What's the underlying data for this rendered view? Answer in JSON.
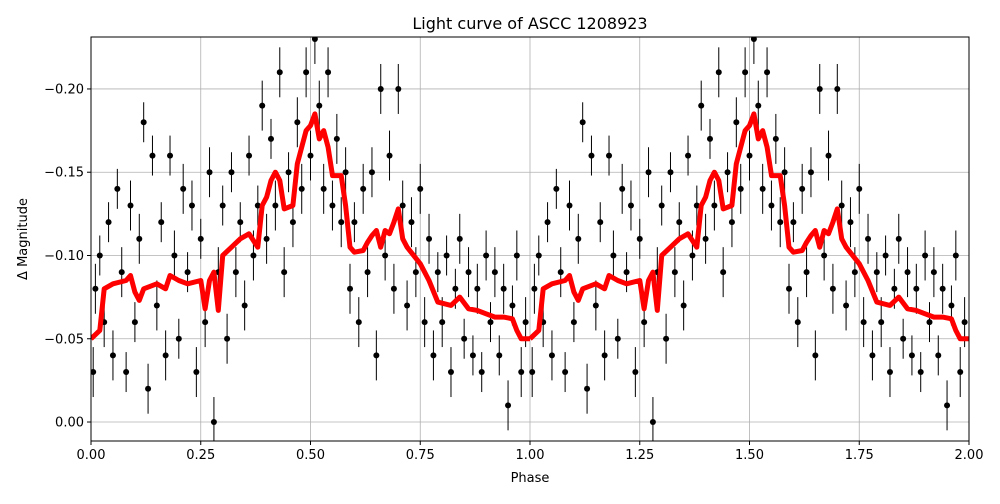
{
  "chart_data": {
    "type": "scatter",
    "title": "Light curve of ASCC 1208923",
    "xlabel": "Phase",
    "ylabel": "Δ Magnitude",
    "xlim": [
      0,
      2
    ],
    "ylim": [
      0.0114,
      -0.2312
    ],
    "y_inverted": true,
    "grid": true,
    "x_ticks": [
      "0.00",
      "0.25",
      "0.50",
      "0.75",
      "1.00",
      "1.25",
      "1.50",
      "1.75",
      "2.00"
    ],
    "y_ticks": [
      "−0.20",
      "−0.15",
      "−0.10",
      "−0.05",
      "0.00"
    ],
    "x_tick_values": [
      0,
      0.25,
      0.5,
      0.75,
      1,
      1.25,
      1.5,
      1.75,
      2
    ],
    "y_tick_values": [
      -0.2,
      -0.15,
      -0.1,
      -0.05,
      0
    ],
    "phase_repeated_twice": true,
    "series": [
      {
        "kind": "errorbar-points",
        "color": "#000000",
        "points": [
          [
            0.005,
            -0.03,
            0.015
          ],
          [
            0.01,
            -0.08,
            0.015
          ],
          [
            0.02,
            -0.1,
            0.012
          ],
          [
            0.03,
            -0.06,
            0.015
          ],
          [
            0.04,
            -0.12,
            0.012
          ],
          [
            0.05,
            -0.04,
            0.015
          ],
          [
            0.06,
            -0.14,
            0.012
          ],
          [
            0.07,
            -0.09,
            0.015
          ],
          [
            0.08,
            -0.03,
            0.012
          ],
          [
            0.09,
            -0.13,
            0.015
          ],
          [
            0.1,
            -0.06,
            0.012
          ],
          [
            0.11,
            -0.11,
            0.015
          ],
          [
            0.12,
            -0.18,
            0.012
          ],
          [
            0.13,
            -0.02,
            0.015
          ],
          [
            0.14,
            -0.16,
            0.012
          ],
          [
            0.15,
            -0.07,
            0.015
          ],
          [
            0.16,
            -0.12,
            0.012
          ],
          [
            0.17,
            -0.04,
            0.015
          ],
          [
            0.18,
            -0.16,
            0.012
          ],
          [
            0.19,
            -0.1,
            0.015
          ],
          [
            0.2,
            -0.05,
            0.012
          ],
          [
            0.21,
            -0.14,
            0.015
          ],
          [
            0.22,
            -0.09,
            0.012
          ],
          [
            0.23,
            -0.13,
            0.015
          ],
          [
            0.24,
            -0.03,
            0.015
          ],
          [
            0.25,
            -0.11,
            0.012
          ],
          [
            0.26,
            -0.06,
            0.015
          ],
          [
            0.27,
            -0.15,
            0.015
          ],
          [
            0.28,
            -0.0,
            0.015
          ],
          [
            0.29,
            -0.09,
            0.015
          ],
          [
            0.3,
            -0.13,
            0.012
          ],
          [
            0.31,
            -0.05,
            0.015
          ],
          [
            0.32,
            -0.15,
            0.012
          ],
          [
            0.33,
            -0.09,
            0.015
          ],
          [
            0.34,
            -0.12,
            0.012
          ],
          [
            0.35,
            -0.07,
            0.015
          ],
          [
            0.36,
            -0.16,
            0.012
          ],
          [
            0.37,
            -0.1,
            0.015
          ],
          [
            0.38,
            -0.13,
            0.012
          ],
          [
            0.39,
            -0.19,
            0.015
          ],
          [
            0.4,
            -0.11,
            0.015
          ],
          [
            0.41,
            -0.17,
            0.012
          ],
          [
            0.42,
            -0.13,
            0.015
          ],
          [
            0.43,
            -0.21,
            0.015
          ],
          [
            0.44,
            -0.09,
            0.015
          ],
          [
            0.45,
            -0.15,
            0.012
          ],
          [
            0.46,
            -0.12,
            0.015
          ],
          [
            0.47,
            -0.18,
            0.015
          ],
          [
            0.48,
            -0.14,
            0.015
          ],
          [
            0.49,
            -0.21,
            0.015
          ],
          [
            0.5,
            -0.16,
            0.015
          ],
          [
            0.51,
            -0.23,
            0.015
          ],
          [
            0.52,
            -0.19,
            0.015
          ],
          [
            0.53,
            -0.14,
            0.015
          ],
          [
            0.54,
            -0.21,
            0.015
          ],
          [
            0.55,
            -0.13,
            0.015
          ],
          [
            0.56,
            -0.17,
            0.015
          ],
          [
            0.57,
            -0.12,
            0.015
          ],
          [
            0.58,
            -0.15,
            0.015
          ],
          [
            0.59,
            -0.08,
            0.015
          ],
          [
            0.6,
            -0.12,
            0.012
          ],
          [
            0.61,
            -0.06,
            0.015
          ],
          [
            0.62,
            -0.14,
            0.015
          ],
          [
            0.63,
            -0.09,
            0.015
          ],
          [
            0.64,
            -0.15,
            0.015
          ],
          [
            0.65,
            -0.04,
            0.015
          ],
          [
            0.66,
            -0.2,
            0.015
          ],
          [
            0.67,
            -0.1,
            0.015
          ],
          [
            0.68,
            -0.16,
            0.015
          ],
          [
            0.69,
            -0.08,
            0.015
          ],
          [
            0.7,
            -0.2,
            0.015
          ],
          [
            0.71,
            -0.13,
            0.015
          ],
          [
            0.72,
            -0.07,
            0.015
          ],
          [
            0.73,
            -0.12,
            0.015
          ],
          [
            0.74,
            -0.09,
            0.015
          ],
          [
            0.75,
            -0.14,
            0.015
          ],
          [
            0.76,
            -0.06,
            0.015
          ],
          [
            0.77,
            -0.11,
            0.015
          ],
          [
            0.78,
            -0.04,
            0.015
          ],
          [
            0.79,
            -0.09,
            0.012
          ],
          [
            0.8,
            -0.06,
            0.015
          ],
          [
            0.81,
            -0.1,
            0.012
          ],
          [
            0.82,
            -0.03,
            0.015
          ],
          [
            0.83,
            -0.08,
            0.012
          ],
          [
            0.84,
            -0.11,
            0.015
          ],
          [
            0.85,
            -0.05,
            0.012
          ],
          [
            0.86,
            -0.09,
            0.015
          ],
          [
            0.87,
            -0.04,
            0.012
          ],
          [
            0.88,
            -0.08,
            0.015
          ],
          [
            0.89,
            -0.03,
            0.012
          ],
          [
            0.9,
            -0.1,
            0.015
          ],
          [
            0.91,
            -0.06,
            0.012
          ],
          [
            0.92,
            -0.09,
            0.015
          ],
          [
            0.93,
            -0.04,
            0.012
          ],
          [
            0.94,
            -0.08,
            0.015
          ],
          [
            0.95,
            -0.01,
            0.015
          ],
          [
            0.96,
            -0.07,
            0.012
          ],
          [
            0.97,
            -0.1,
            0.015
          ],
          [
            0.98,
            -0.03,
            0.015
          ],
          [
            0.99,
            -0.06,
            0.015
          ]
        ]
      },
      {
        "kind": "line",
        "color": "#ff0000",
        "x": [
          0.0,
          0.02,
          0.03,
          0.05,
          0.08,
          0.09,
          0.1,
          0.11,
          0.12,
          0.15,
          0.17,
          0.18,
          0.2,
          0.22,
          0.25,
          0.26,
          0.27,
          0.28,
          0.29,
          0.3,
          0.32,
          0.34,
          0.36,
          0.38,
          0.39,
          0.4,
          0.41,
          0.42,
          0.43,
          0.44,
          0.46,
          0.47,
          0.48,
          0.49,
          0.5,
          0.51,
          0.52,
          0.53,
          0.54,
          0.55,
          0.57,
          0.58,
          0.59,
          0.6,
          0.62,
          0.63,
          0.64,
          0.65,
          0.66,
          0.67,
          0.68,
          0.69,
          0.7,
          0.71,
          0.72,
          0.75,
          0.77,
          0.79,
          0.82,
          0.84,
          0.86,
          0.88,
          0.9,
          0.92,
          0.94,
          0.96,
          0.97,
          0.98,
          1.0
        ],
        "y": [
          -0.05,
          -0.055,
          -0.08,
          -0.083,
          -0.085,
          -0.088,
          -0.078,
          -0.073,
          -0.08,
          -0.083,
          -0.08,
          -0.088,
          -0.085,
          -0.083,
          -0.085,
          -0.068,
          -0.085,
          -0.09,
          -0.067,
          -0.1,
          -0.105,
          -0.11,
          -0.113,
          -0.105,
          -0.13,
          -0.135,
          -0.145,
          -0.15,
          -0.145,
          -0.128,
          -0.13,
          -0.155,
          -0.165,
          -0.175,
          -0.178,
          -0.185,
          -0.17,
          -0.175,
          -0.165,
          -0.148,
          -0.148,
          -0.13,
          -0.105,
          -0.102,
          -0.103,
          -0.108,
          -0.112,
          -0.115,
          -0.105,
          -0.115,
          -0.113,
          -0.12,
          -0.128,
          -0.11,
          -0.105,
          -0.095,
          -0.085,
          -0.072,
          -0.07,
          -0.075,
          -0.068,
          -0.067,
          -0.065,
          -0.063,
          -0.063,
          -0.062,
          -0.055,
          -0.05,
          -0.05
        ]
      }
    ]
  }
}
